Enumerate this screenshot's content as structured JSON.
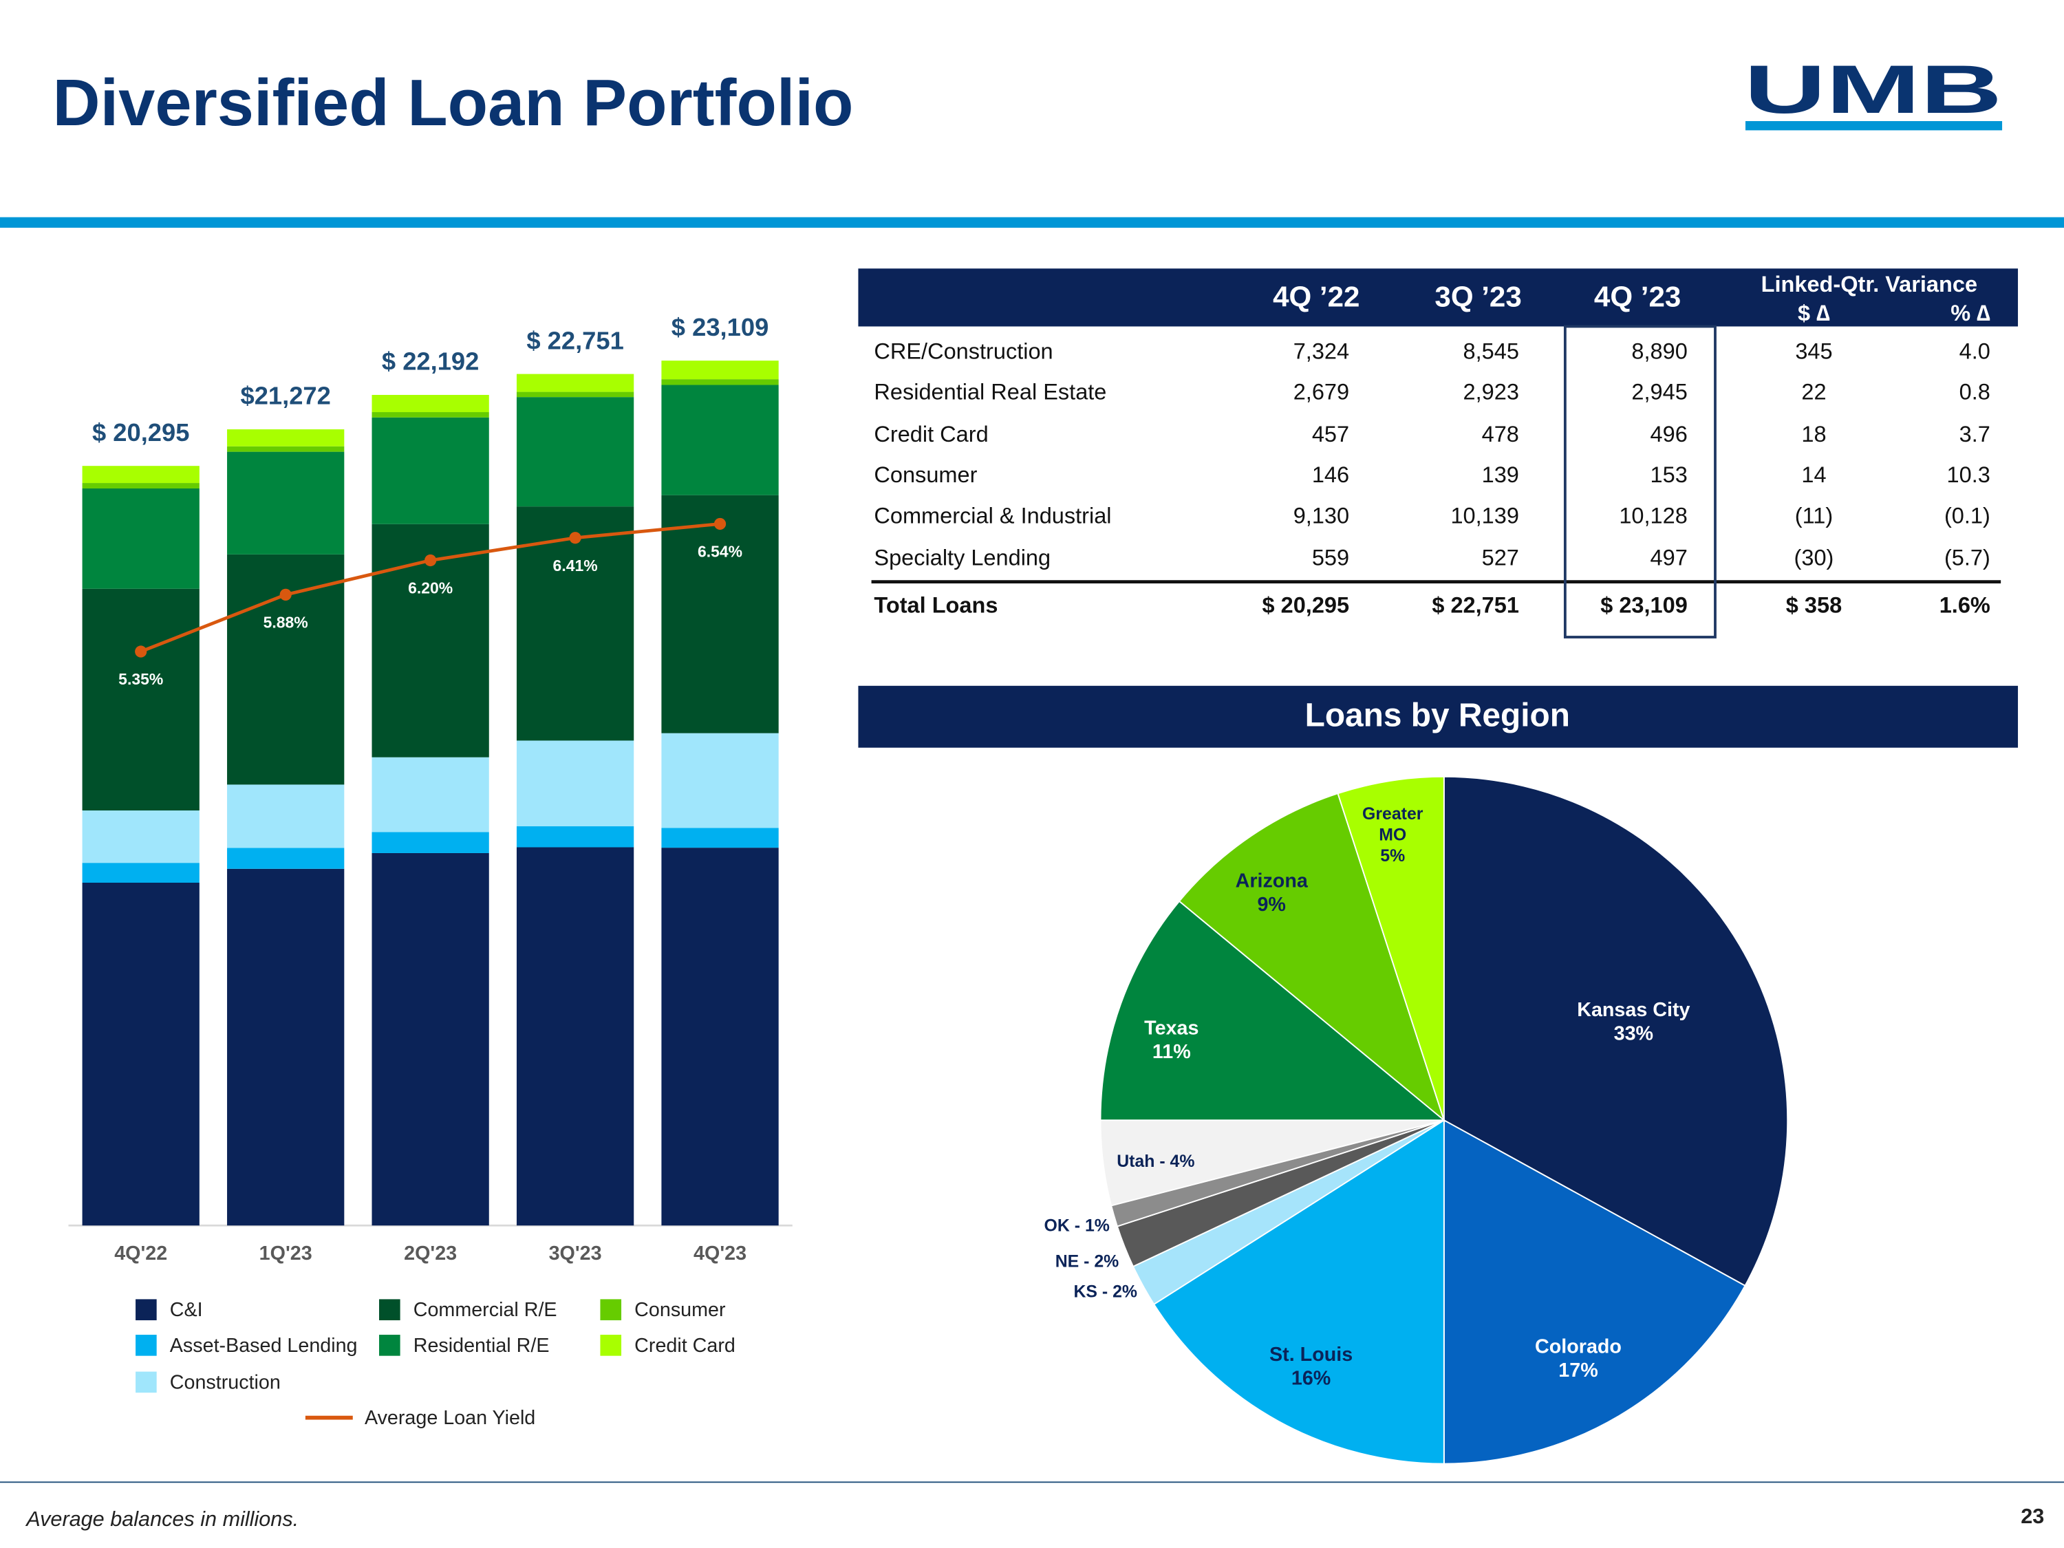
{
  "title": "Diversified Loan Portfolio",
  "logo": "UMB",
  "footnote": "Average balances in millions.",
  "page_number": "23",
  "chart_data": [
    {
      "type": "bar",
      "stacked": true,
      "categories": [
        "4Q'22",
        "1Q'23",
        "2Q'23",
        "3Q'23",
        "4Q'23"
      ],
      "series": [
        {
          "name": "C&I",
          "color": "#0b2358",
          "values": [
            9159,
            9530,
            9950,
            10106,
            10094
          ]
        },
        {
          "name": "Asset-Based Lending",
          "color": "#00b0f0",
          "values": [
            530,
            560,
            560,
            560,
            530
          ]
        },
        {
          "name": "Construction",
          "color": "#a0e6fc",
          "values": [
            1400,
            1690,
            2000,
            2290,
            2530
          ]
        },
        {
          "name": "Commercial R/E",
          "color": "#00502a",
          "values": [
            5924,
            6150,
            6230,
            6255,
            6360
          ]
        },
        {
          "name": "Residential R/E",
          "color": "#00853e",
          "values": [
            2679,
            2743,
            2850,
            2923,
            2945
          ]
        },
        {
          "name": "Consumer",
          "color": "#66cc00",
          "values": [
            146,
            145,
            142,
            139,
            153
          ]
        },
        {
          "name": "Credit Card",
          "color": "#a8ff00",
          "values": [
            457,
            454,
            460,
            478,
            496
          ]
        },
        {
          "name": "Average Loan Yield",
          "type": "line",
          "axis": "y2",
          "color": "#d9580f",
          "values": [
            5.35,
            5.88,
            6.2,
            6.41,
            6.54
          ],
          "value_labels": [
            "5.35%",
            "5.88%",
            "6.20%",
            "6.41%",
            "6.54%"
          ]
        }
      ],
      "total_labels": [
        "$ 20,295",
        "$21,272",
        "$ 22,192",
        "$ 22,751",
        "$ 23,109"
      ]
    },
    {
      "type": "pie",
      "title": "Loans by Region",
      "labels": [
        [
          "Kansas City",
          "33%"
        ],
        [
          "Colorado",
          "17%"
        ],
        [
          "St. Louis",
          "16%"
        ],
        [
          "KS - 2%"
        ],
        [
          "NE - 2%"
        ],
        [
          "OK - 1%"
        ],
        [
          "Utah - 4%"
        ],
        [
          "Texas",
          "11%"
        ],
        [
          "Arizona",
          "9%"
        ],
        [
          "Greater",
          "MO",
          "5%"
        ]
      ],
      "values": [
        33,
        17,
        16,
        2,
        2,
        1,
        4,
        11,
        9,
        5
      ],
      "colors": [
        "#0b2358",
        "#0563c1",
        "#00b0f0",
        "#a6e4fb",
        "#595959",
        "#8c8c8c",
        "#f2f2f2",
        "#00853e",
        "#66cc00",
        "#a8ff00"
      ]
    }
  ],
  "table": {
    "columns": [
      "4Q ’22",
      "3Q ’23",
      "4Q ’23"
    ],
    "variance_header": "Linked-Qtr. Variance",
    "variance_columns": [
      "$ ∆",
      "% ∆"
    ],
    "rows": [
      [
        "CRE/Construction",
        "7,324",
        "8,545",
        "8,890",
        "345",
        "4.0"
      ],
      [
        "Residential Real Estate",
        "2,679",
        "2,923",
        "2,945",
        "22",
        "0.8"
      ],
      [
        "Credit Card",
        "457",
        "478",
        "496",
        "18",
        "3.7"
      ],
      [
        "Consumer",
        "146",
        "139",
        "153",
        "14",
        "10.3"
      ],
      [
        "Commercial & Industrial",
        "9,130",
        "10,139",
        "10,128",
        "(11)",
        "(0.1)"
      ],
      [
        "Specialty Lending",
        "559",
        "527",
        "497",
        "(30)",
        "(5.7)"
      ]
    ],
    "total_row": [
      "Total Loans",
      "$ 20,295",
      "$ 22,751",
      "$ 23,109",
      "$ 358",
      "1.6%"
    ]
  }
}
